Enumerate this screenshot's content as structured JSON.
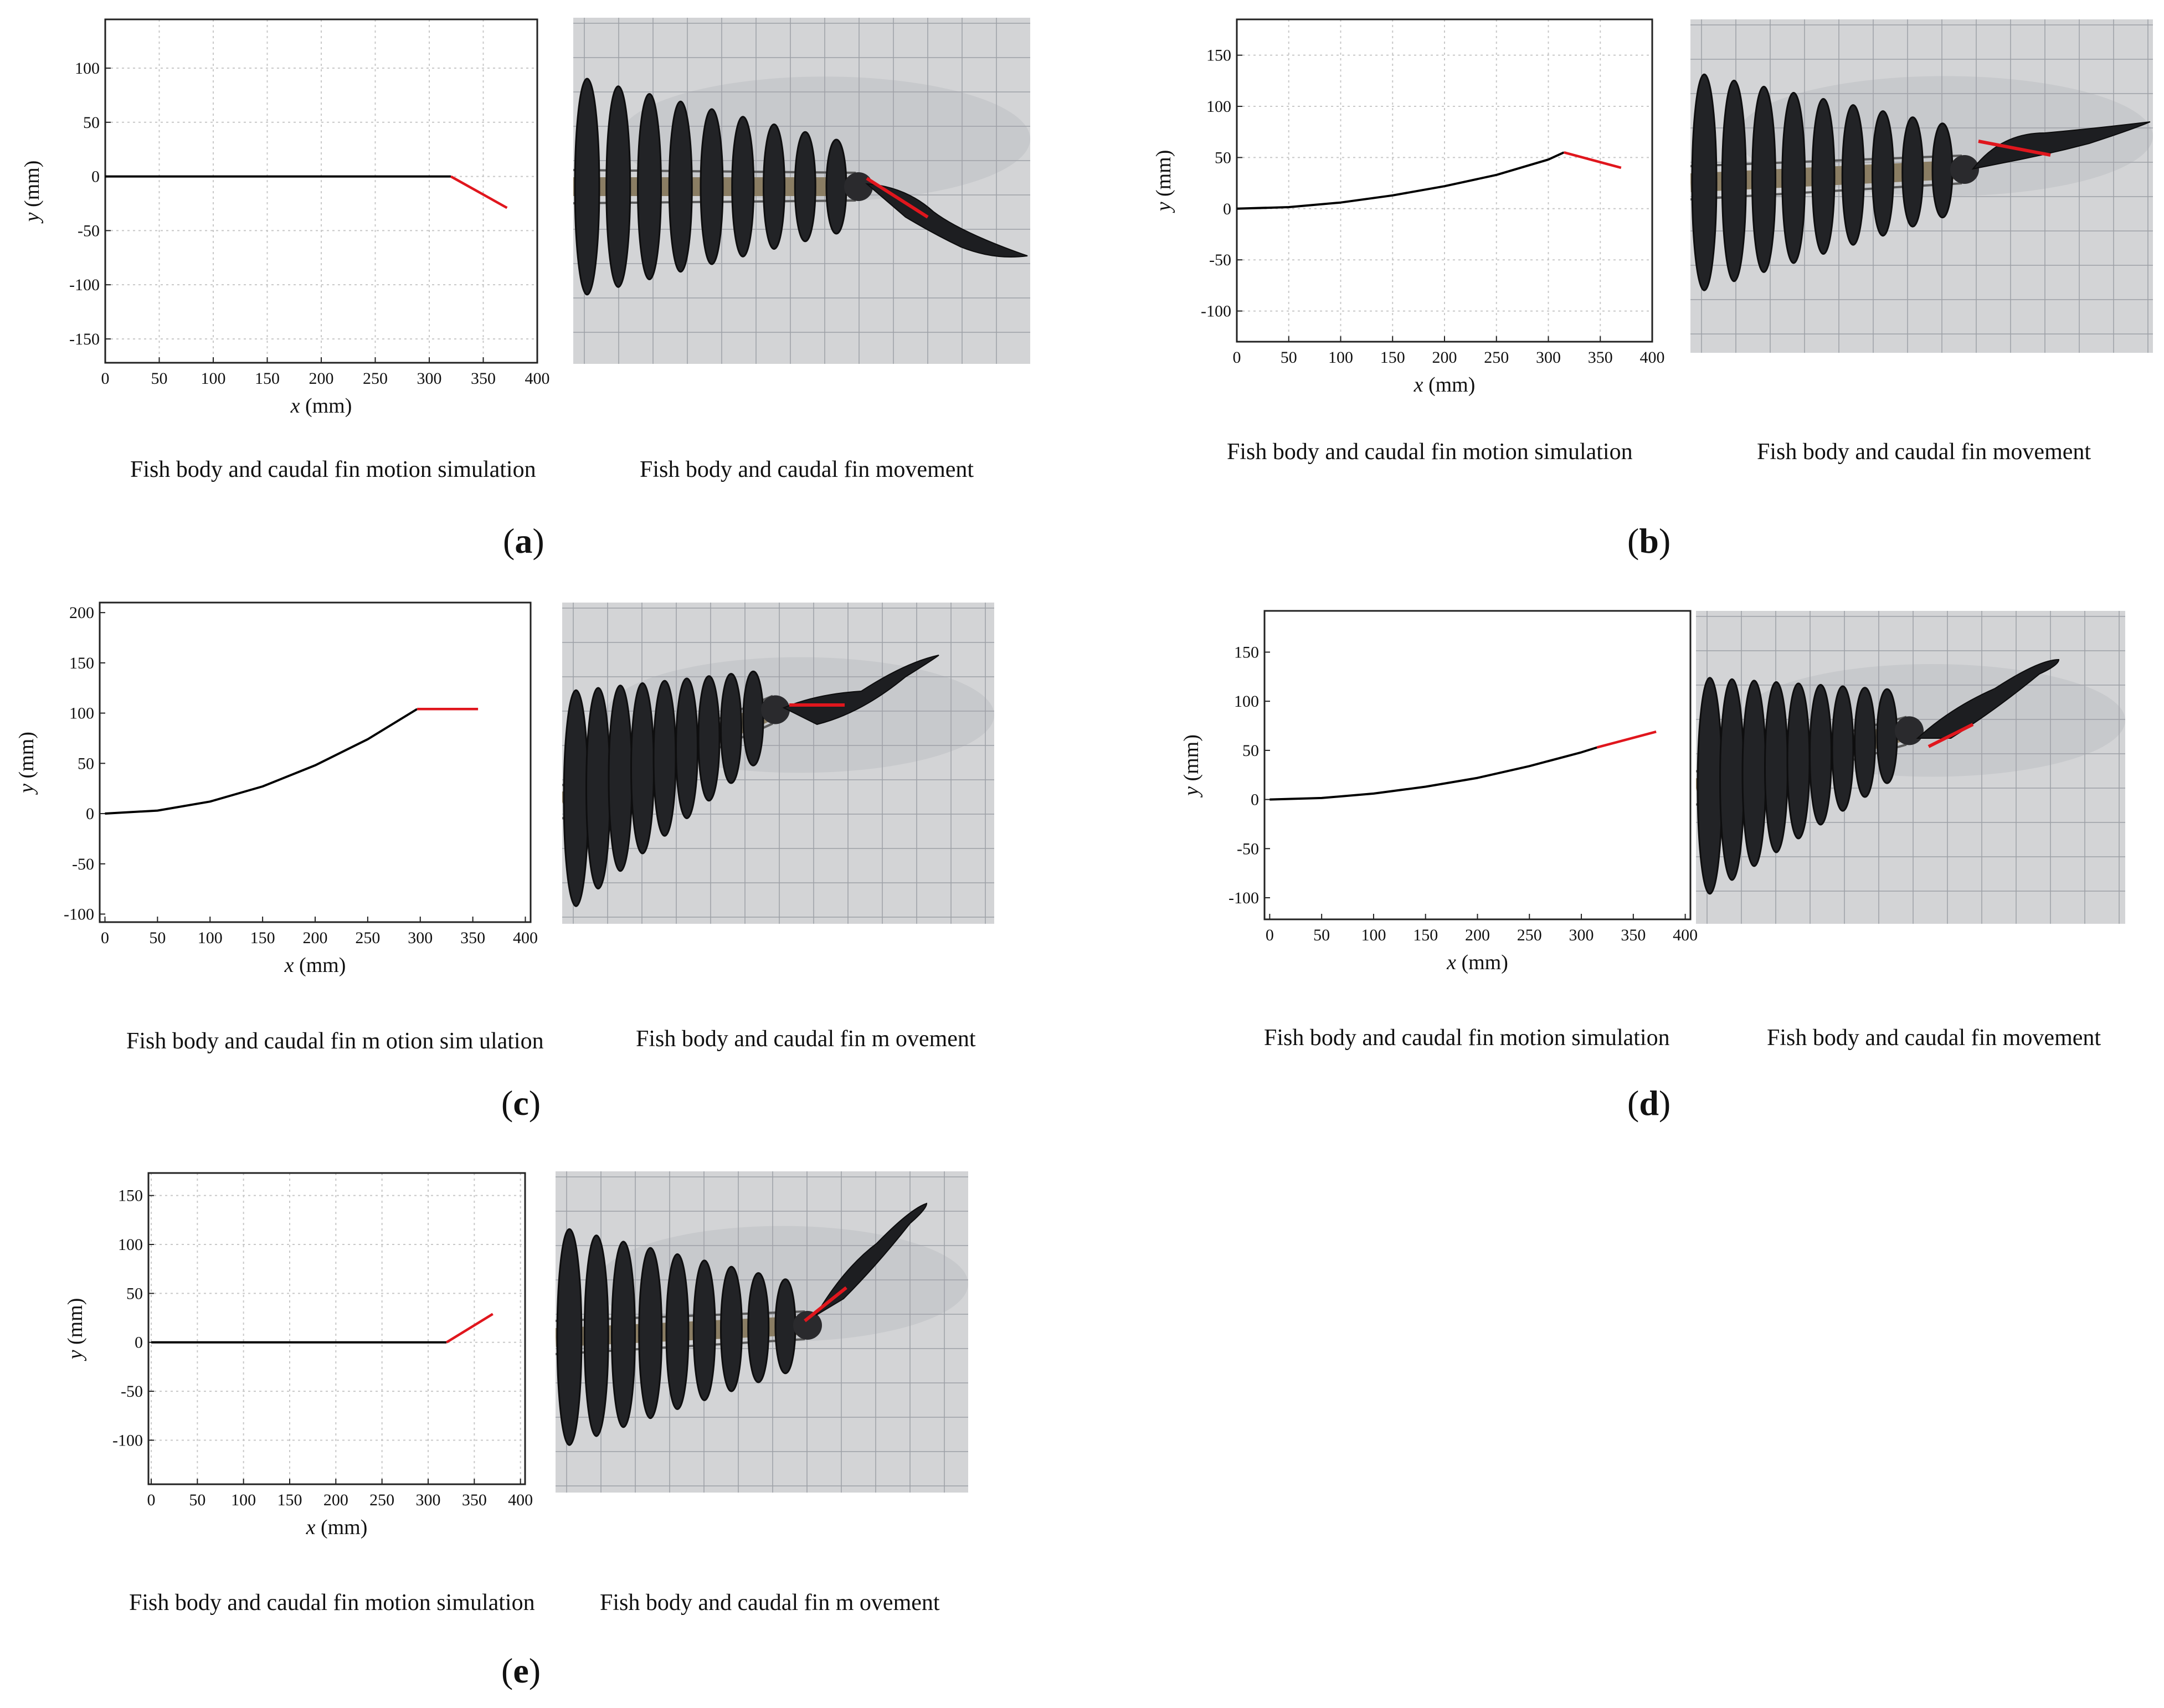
{
  "chart_data": [
    {
      "id": "a",
      "type": "line",
      "panel_label": "a",
      "xlabel_var": "x",
      "xlabel_unit": " (mm)",
      "ylabel_var": "y",
      "ylabel_unit": " (mm)",
      "xlim": [
        0,
        400
      ],
      "ylim": [
        -172,
        145
      ],
      "xticks": [
        0,
        50,
        100,
        150,
        200,
        250,
        300,
        350,
        400
      ],
      "yticks": [
        -150,
        -100,
        -50,
        0,
        50,
        100
      ],
      "grid": true,
      "series": [
        {
          "name": "fish body",
          "color": "#000000",
          "x": [
            0,
            80,
            160,
            240,
            320
          ],
          "y": [
            0,
            0,
            0,
            0,
            0
          ]
        },
        {
          "name": "caudal fin",
          "color": "#e0161d",
          "x": [
            320,
            372
          ],
          "y": [
            0,
            -29
          ]
        }
      ],
      "caption_left": "Fish body and caudal fin motion simulation",
      "caption_right": "Fish body and caudal fin movement"
    },
    {
      "id": "b",
      "type": "line",
      "panel_label": "b",
      "xlabel_var": "x",
      "xlabel_unit": " (mm)",
      "ylabel_var": "y",
      "ylabel_unit": " (mm)",
      "xlim": [
        0,
        400
      ],
      "ylim": [
        -130,
        185
      ],
      "xticks": [
        0,
        50,
        100,
        150,
        200,
        250,
        300,
        350,
        400
      ],
      "yticks": [
        -100,
        -50,
        0,
        50,
        100,
        150
      ],
      "grid": true,
      "series": [
        {
          "name": "fish body",
          "color": "#000000",
          "x": [
            0,
            50,
            100,
            150,
            200,
            250,
            300,
            315
          ],
          "y": [
            0,
            1.5,
            6,
            13,
            22,
            33,
            48,
            55
          ]
        },
        {
          "name": "caudal fin",
          "color": "#e0161d",
          "x": [
            315,
            370
          ],
          "y": [
            55,
            40
          ]
        }
      ],
      "caption_left": "Fish body and caudal fin motion simulation",
      "caption_right": "Fish body and caudal fin movement"
    },
    {
      "id": "c",
      "type": "line",
      "panel_label": "c",
      "xlabel_var": "x",
      "xlabel_unit": " (mm)",
      "ylabel_var": "y",
      "ylabel_unit": " (mm)",
      "xlim": [
        -5,
        405
      ],
      "ylim": [
        -108,
        210
      ],
      "xticks": [
        0,
        50,
        100,
        150,
        200,
        250,
        300,
        350,
        400
      ],
      "yticks": [
        -100,
        -50,
        0,
        50,
        100,
        150,
        200
      ],
      "grid": false,
      "series": [
        {
          "name": "fish body",
          "color": "#000000",
          "x": [
            0,
            50,
            100,
            150,
            200,
            250,
            297
          ],
          "y": [
            0,
            3,
            12,
            27,
            48,
            74,
            104
          ]
        },
        {
          "name": "caudal fin",
          "color": "#e0161d",
          "x": [
            297,
            355
          ],
          "y": [
            104,
            104
          ]
        }
      ],
      "caption_left": "Fish body and caudal fin m otion sim ulation",
      "caption_right": "Fish body and caudal fin m ovement"
    },
    {
      "id": "d",
      "type": "line",
      "panel_label": "d",
      "xlabel_var": "x",
      "xlabel_unit": " (mm)",
      "ylabel_var": "y",
      "ylabel_unit": " (mm)",
      "xlim": [
        -5,
        405
      ],
      "ylim": [
        -122,
        192
      ],
      "xticks": [
        0,
        50,
        100,
        150,
        200,
        250,
        300,
        350,
        400
      ],
      "yticks": [
        -100,
        -50,
        0,
        50,
        100,
        150
      ],
      "grid": false,
      "series": [
        {
          "name": "fish body",
          "color": "#000000",
          "x": [
            0,
            50,
            100,
            150,
            200,
            250,
            300,
            315
          ],
          "y": [
            0,
            1.5,
            6,
            13,
            22,
            34,
            48,
            53
          ]
        },
        {
          "name": "caudal fin",
          "color": "#e0161d",
          "x": [
            315,
            372
          ],
          "y": [
            53,
            69
          ]
        }
      ],
      "caption_left": "Fish body and caudal fin motion simulation",
      "caption_right": "Fish body and caudal fin movement"
    },
    {
      "id": "e",
      "type": "line",
      "panel_label": "e",
      "xlabel_var": "x",
      "xlabel_unit": " (mm)",
      "ylabel_var": "y",
      "ylabel_unit": " (mm)",
      "xlim": [
        -3,
        405
      ],
      "ylim": [
        -145,
        173
      ],
      "xticks": [
        0,
        50,
        100,
        150,
        200,
        250,
        300,
        350,
        400
      ],
      "yticks": [
        -100,
        -50,
        0,
        50,
        100,
        150
      ],
      "grid": true,
      "series": [
        {
          "name": "fish body",
          "color": "#000000",
          "x": [
            0,
            80,
            160,
            240,
            320
          ],
          "y": [
            0,
            0,
            0,
            0,
            0
          ]
        },
        {
          "name": "caudal fin",
          "color": "#e0161d",
          "x": [
            320,
            370
          ],
          "y": [
            0,
            29
          ]
        }
      ],
      "caption_left": "Fish body and caudal fin motion simulation",
      "caption_right": "Fish body and caudal fin m ovement"
    }
  ]
}
